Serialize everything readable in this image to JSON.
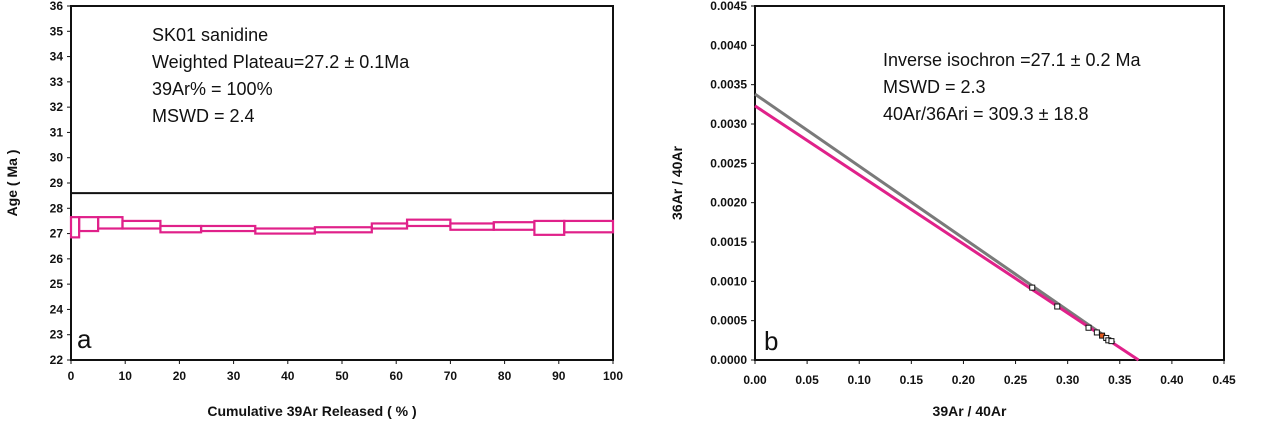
{
  "colors": {
    "magenta": "#e0218a",
    "gray": "#7a7a7a",
    "black": "#111111",
    "orange": "#e05a20"
  },
  "chart_data": [
    {
      "type": "step-spectrum",
      "panel_label": "a",
      "title": "",
      "xlabel": "Cumulative 39Ar Released ( % )",
      "ylabel": "Age ( Ma )",
      "xlim": [
        0,
        100
      ],
      "ylim": [
        22,
        36
      ],
      "xticks": [
        0,
        10,
        20,
        30,
        40,
        50,
        60,
        70,
        80,
        90,
        100
      ],
      "yticks": [
        22,
        23,
        24,
        25,
        26,
        27,
        28,
        29,
        30,
        31,
        32,
        33,
        34,
        35,
        36
      ],
      "reference_line_y": 28.6,
      "steps": [
        {
          "x0": 0,
          "x1": 1.5,
          "lo": 26.85,
          "hi": 27.65
        },
        {
          "x0": 1.5,
          "x1": 5,
          "lo": 27.1,
          "hi": 27.65
        },
        {
          "x0": 5,
          "x1": 9.5,
          "lo": 27.2,
          "hi": 27.65
        },
        {
          "x0": 9.5,
          "x1": 16.5,
          "lo": 27.2,
          "hi": 27.5
        },
        {
          "x0": 16.5,
          "x1": 24,
          "lo": 27.05,
          "hi": 27.3
        },
        {
          "x0": 24,
          "x1": 34,
          "lo": 27.1,
          "hi": 27.3
        },
        {
          "x0": 34,
          "x1": 45,
          "lo": 27.0,
          "hi": 27.2
        },
        {
          "x0": 45,
          "x1": 55.5,
          "lo": 27.05,
          "hi": 27.25
        },
        {
          "x0": 55.5,
          "x1": 62,
          "lo": 27.2,
          "hi": 27.4
        },
        {
          "x0": 62,
          "x1": 70,
          "lo": 27.3,
          "hi": 27.55
        },
        {
          "x0": 70,
          "x1": 78,
          "lo": 27.15,
          "hi": 27.4
        },
        {
          "x0": 78,
          "x1": 85.5,
          "lo": 27.15,
          "hi": 27.45
        },
        {
          "x0": 85.5,
          "x1": 91,
          "lo": 26.95,
          "hi": 27.5
        },
        {
          "x0": 91,
          "x1": 100,
          "lo": 27.05,
          "hi": 27.5
        }
      ],
      "annotations": [
        "SK01 sanidine",
        "Weighted Plateau=27.2 ± 0.1Ma",
        "39Ar% = 100%",
        "MSWD = 2.4"
      ]
    },
    {
      "type": "scatter",
      "panel_label": "b",
      "title": "",
      "xlabel": "39Ar / 40Ar",
      "ylabel": "36Ar / 40Ar",
      "xlim": [
        0,
        0.45
      ],
      "ylim": [
        0,
        0.0045
      ],
      "xticks": [
        "0.00",
        "0.05",
        "0.10",
        "0.15",
        "0.20",
        "0.25",
        "0.30",
        "0.35",
        "0.40",
        "0.45"
      ],
      "yticks": [
        "0.0000",
        "0.0005",
        "0.0010",
        "0.0015",
        "0.0020",
        "0.0025",
        "0.0030",
        "0.0035",
        "0.0040",
        "0.0045"
      ],
      "lines": [
        {
          "name": "reference",
          "color": "gray",
          "x": [
            0,
            0.345
          ],
          "y": [
            0.00338,
            0.00022
          ]
        },
        {
          "name": "isochron fit",
          "color": "magenta",
          "x": [
            0,
            0.368
          ],
          "y": [
            0.00323,
            0.0
          ]
        }
      ],
      "points": [
        {
          "x": 0.266,
          "y": 0.00092
        },
        {
          "x": 0.29,
          "y": 0.00068
        },
        {
          "x": 0.32,
          "y": 0.00041
        },
        {
          "x": 0.328,
          "y": 0.00035
        },
        {
          "x": 0.333,
          "y": 0.00031,
          "highlight": true
        },
        {
          "x": 0.337,
          "y": 0.00028
        },
        {
          "x": 0.339,
          "y": 0.00025
        },
        {
          "x": 0.342,
          "y": 0.00024
        }
      ],
      "annotations": [
        "Inverse isochron =27.1 ± 0.2 Ma",
        "MSWD = 2.3",
        "40Ar/36Ari = 309.3 ± 18.8"
      ]
    }
  ]
}
